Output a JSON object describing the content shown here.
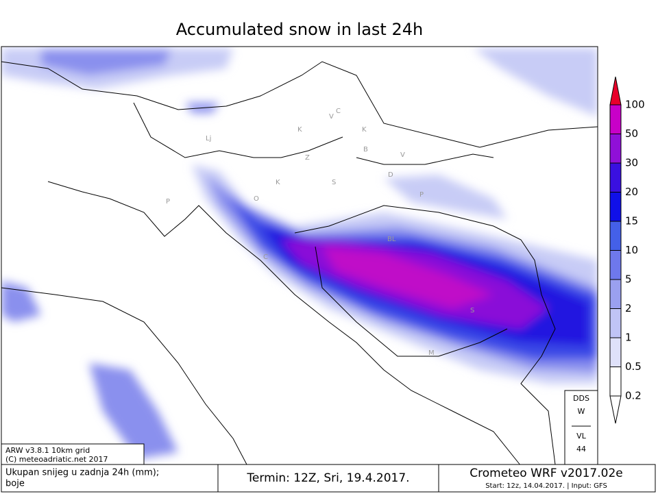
{
  "title": "Accumulated snow in last 24h",
  "colorbar": {
    "labels": [
      "100",
      "50",
      "30",
      "20",
      "15",
      "10",
      "5",
      "2",
      "1",
      "0.5",
      "0.2"
    ]
  },
  "model_box": {
    "lines": [
      "ARW v3.8.1 10km grid",
      "(C) meteoadriatic.net 2017"
    ]
  },
  "station_box": {
    "top": [
      "DDS",
      "W"
    ],
    "bottom": [
      "VL",
      "44"
    ]
  },
  "footer": {
    "description": [
      "Ukupan snijeg u zadnja 24h (mm);",
      "boje"
    ],
    "termin": "Termin: 12Z, Sri, 19.4.2017.",
    "model": "Crometeo WRF v2017.02e",
    "start": "Start: 12z, 14.04.2017. | Input: GFS"
  },
  "map_labels": [
    "Lj",
    "K",
    "V",
    "C",
    "K",
    "B",
    "V",
    "Z",
    "K",
    "S",
    "D",
    "P",
    "O",
    "P",
    "BL",
    "C",
    "S",
    "M"
  ]
}
